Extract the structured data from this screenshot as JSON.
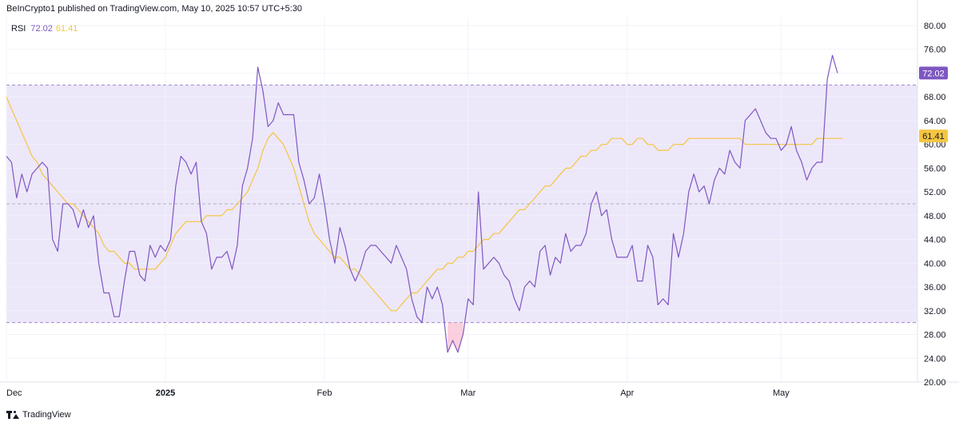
{
  "header": {
    "attribution": "BeInCrypto1 published on TradingView.com, May 10, 2025 10:57 UTC+5:30"
  },
  "legend": {
    "name": "RSI",
    "rsi_value": "72.02",
    "ma_value": "61.41"
  },
  "footer": {
    "brand": "TradingView"
  },
  "colors": {
    "rsi": "#7e57c2",
    "ma": "#f5c542",
    "band": "#ede7fa",
    "dashed": "#9e8cc8",
    "oversold_fill": "#f8bbd0"
  },
  "chart_data": {
    "type": "line",
    "title": "",
    "ylim": [
      20,
      80
    ],
    "y_ticks": [
      "80.00",
      "76.00",
      "72.00",
      "68.00",
      "64.00",
      "60.00",
      "56.00",
      "52.00",
      "48.00",
      "44.00",
      "40.00",
      "36.00",
      "32.00",
      "28.00",
      "24.00",
      "20.00"
    ],
    "x_ticks": [
      {
        "label": "Dec",
        "index": 0
      },
      {
        "label": "2025",
        "index": 31
      },
      {
        "label": "Feb",
        "index": 62
      },
      {
        "label": "Mar",
        "index": 90
      },
      {
        "label": "Apr",
        "index": 121
      },
      {
        "label": "May",
        "index": 151
      }
    ],
    "overbought": 70,
    "oversold": 30,
    "midline": 50,
    "grid": true,
    "last_values": {
      "rsi": "72.02",
      "ma": "61.41"
    },
    "series": [
      {
        "name": "RSI",
        "color": "#7e57c2",
        "x_start": 0,
        "values": [
          58,
          57,
          51,
          55,
          52,
          55,
          56,
          57,
          56,
          44,
          42,
          50,
          50,
          49,
          46,
          49,
          46,
          48,
          40,
          35,
          35,
          31,
          31,
          37,
          42,
          42,
          38,
          37,
          43,
          41,
          43,
          42,
          44,
          53,
          58,
          57,
          55,
          57,
          47,
          45,
          39,
          41,
          41,
          42,
          39,
          43,
          53,
          56,
          61,
          73,
          69,
          63,
          64,
          67,
          65,
          65,
          65,
          57,
          54,
          50,
          51,
          55,
          50,
          44,
          40,
          46,
          43,
          39,
          37,
          39,
          42,
          43,
          43,
          42,
          41,
          40,
          43,
          41,
          39,
          34,
          31,
          30,
          36,
          34,
          36,
          33,
          25,
          27,
          25,
          28,
          34,
          33,
          52,
          39,
          40,
          41,
          40,
          38,
          37,
          34,
          32,
          36,
          37,
          36,
          42,
          43,
          38,
          41,
          40,
          45,
          42,
          43,
          43,
          45,
          50,
          52,
          48,
          49,
          44,
          41,
          41,
          41,
          43,
          37,
          37,
          43,
          41,
          33,
          34,
          33,
          45,
          41,
          45,
          52,
          55,
          52,
          53,
          50,
          54,
          56,
          55,
          59,
          57,
          56,
          64,
          65,
          66,
          64,
          62,
          61,
          61,
          59,
          60,
          63,
          59,
          57,
          54,
          56,
          57,
          57,
          71,
          75,
          72
        ]
      },
      {
        "name": "MA",
        "color": "#f5c542",
        "x_start": 0,
        "values": [
          68,
          66,
          64,
          62,
          60,
          58,
          57,
          55,
          54,
          53,
          52,
          51,
          50,
          50,
          49,
          48,
          47,
          46,
          45,
          43,
          42,
          42,
          41,
          40,
          40,
          39,
          39,
          39,
          39,
          39,
          40,
          41,
          43,
          45,
          46,
          47,
          47,
          47,
          47,
          48,
          48,
          48,
          48,
          49,
          49,
          50,
          51,
          52,
          54,
          56,
          59,
          61,
          62,
          61,
          60,
          58,
          56,
          53,
          50,
          47,
          45,
          44,
          43,
          42,
          41,
          41,
          40,
          39,
          39,
          38,
          37,
          36,
          35,
          34,
          33,
          32,
          32,
          33,
          34,
          35,
          35,
          36,
          37,
          38,
          39,
          39,
          40,
          40,
          41,
          41,
          42,
          42,
          43,
          44,
          44,
          45,
          45,
          46,
          47,
          48,
          49,
          49,
          50,
          51,
          52,
          53,
          53,
          54,
          55,
          56,
          56,
          57,
          58,
          58,
          59,
          59,
          60,
          60,
          61,
          61,
          61,
          60,
          60,
          61,
          61,
          60,
          60,
          59,
          59,
          59,
          60,
          60,
          60,
          61,
          61,
          61,
          61,
          61,
          61,
          61,
          61,
          61,
          61,
          61,
          60,
          60,
          60,
          60,
          60,
          60,
          60,
          60,
          60,
          60,
          60,
          60,
          60,
          60,
          61,
          61,
          61,
          61,
          61,
          61
        ]
      }
    ]
  }
}
